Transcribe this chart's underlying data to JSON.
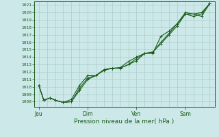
{
  "bg_color": "#cce8e8",
  "grid_color": "#aacccc",
  "line_color": "#1a5c1a",
  "marker_color": "#1a5c1a",
  "title": "Pression niveau de la mer( hPa )",
  "ylabel_ticks": [
    1008,
    1009,
    1010,
    1011,
    1012,
    1013,
    1014,
    1015,
    1016,
    1017,
    1018,
    1019,
    1020,
    1021
  ],
  "ylim": [
    1007.3,
    1021.5
  ],
  "xtick_labels": [
    "Jeu",
    "Dim",
    "Ven",
    "Sam"
  ],
  "xtick_positions": [
    0.0,
    3.0,
    6.0,
    9.0
  ],
  "xlim": [
    -0.3,
    10.8
  ],
  "series1_x": [
    0.0,
    0.3,
    0.7,
    1.0,
    1.5,
    2.0,
    2.5,
    3.0,
    3.5,
    4.0,
    4.5,
    5.0,
    5.5,
    6.0,
    6.5,
    7.0,
    7.5,
    8.0,
    8.5,
    9.0,
    9.5,
    10.0,
    10.5
  ],
  "series1": [
    1010.2,
    1008.2,
    1008.5,
    1008.2,
    1007.9,
    1008.0,
    1009.8,
    1011.2,
    1011.5,
    1012.3,
    1012.5,
    1012.5,
    1013.0,
    1013.5,
    1014.5,
    1014.5,
    1016.8,
    1017.5,
    1018.5,
    1020.0,
    1019.8,
    1019.5,
    1021.2
  ],
  "series2": [
    1010.2,
    1008.2,
    1008.5,
    1008.2,
    1007.9,
    1008.3,
    1010.2,
    1011.5,
    1011.5,
    1012.3,
    1012.5,
    1012.6,
    1013.4,
    1014.0,
    1014.5,
    1014.6,
    1016.0,
    1017.2,
    1018.5,
    1019.8,
    1019.8,
    1020.0,
    1021.2
  ],
  "series3": [
    1010.2,
    1008.2,
    1008.5,
    1008.2,
    1007.9,
    1008.0,
    1009.5,
    1011.0,
    1011.5,
    1012.2,
    1012.5,
    1012.5,
    1013.0,
    1013.8,
    1014.5,
    1014.7,
    1015.8,
    1017.0,
    1018.2,
    1019.8,
    1019.5,
    1019.8,
    1021.2
  ]
}
